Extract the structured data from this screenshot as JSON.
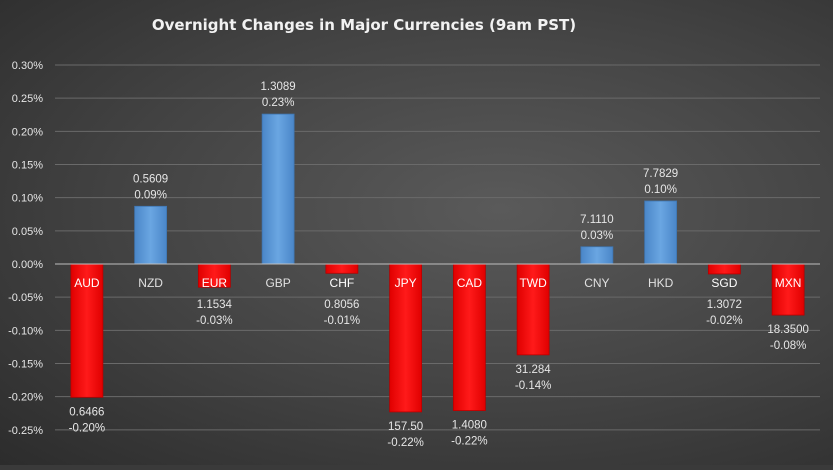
{
  "chart_data": {
    "type": "bar",
    "title": "Overnight Changes in Major Currencies (9am PST)",
    "categories": [
      "AUD",
      "NZD",
      "EUR",
      "GBP",
      "CHF",
      "JPY",
      "CAD",
      "TWD",
      "CNY",
      "HKD",
      "SGD",
      "MXN"
    ],
    "values": [
      -0.201,
      0.087,
      -0.035,
      0.226,
      -0.014,
      -0.223,
      -0.221,
      -0.137,
      0.026,
      0.095,
      -0.015,
      -0.077
    ],
    "value_labels": [
      "-0.20%",
      "0.09%",
      "-0.03%",
      "0.23%",
      "-0.01%",
      "-0.22%",
      "-0.22%",
      "-0.14%",
      "0.03%",
      "0.10%",
      "-0.02%",
      "-0.08%"
    ],
    "rates": [
      "0.6466",
      "0.5609",
      "1.1534",
      "1.3089",
      "0.8056",
      "157.50",
      "1.4080",
      "31.284",
      "7.1110",
      "7.7829",
      "1.3072",
      "18.3500"
    ],
    "ylim": [
      -0.25,
      0.3
    ],
    "yticks": [
      0.3,
      0.25,
      0.2,
      0.15,
      0.1,
      0.05,
      0.0,
      -0.05,
      -0.1,
      -0.15,
      -0.2,
      -0.25
    ],
    "ytick_labels": [
      "0.30%",
      "0.25%",
      "0.20%",
      "0.15%",
      "0.10%",
      "0.05%",
      "0.00%",
      "-0.05%",
      "-0.10%",
      "-0.15%",
      "-0.20%",
      "-0.25%"
    ],
    "xlabel": "",
    "ylabel": "",
    "grid": true,
    "legend": "none",
    "colors": {
      "positive": "#5b9bd5",
      "negative": "#ff0000",
      "text": "#e6e6e6",
      "grid": "#6a6a6a",
      "axis": "#bfbfbf"
    }
  }
}
